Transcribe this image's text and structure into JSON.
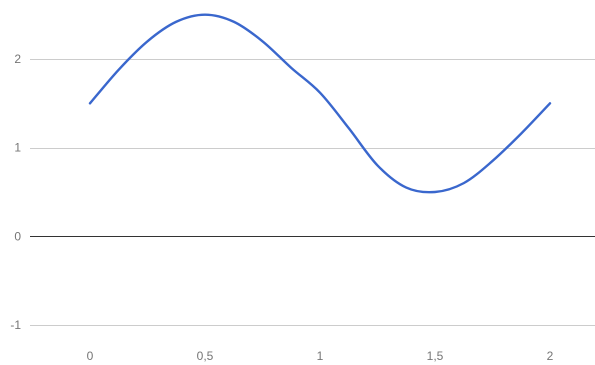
{
  "chart_data": {
    "type": "line",
    "title": "",
    "xlabel": "",
    "ylabel": "",
    "xlim": [
      0,
      2
    ],
    "ylim": [
      -1,
      2
    ],
    "x_ticks": [
      0,
      0.5,
      1,
      1.5,
      2
    ],
    "x_tick_labels": [
      "0",
      "0,5",
      "1",
      "1,5",
      "2"
    ],
    "y_ticks": [
      -1,
      0,
      1,
      2
    ],
    "y_tick_labels": [
      "-1",
      "0",
      "1",
      "2"
    ],
    "grid": true,
    "legend": "none",
    "series": [
      {
        "color": "#3a67cd",
        "x": [
          0,
          0.125,
          0.25,
          0.375,
          0.5,
          0.625,
          0.75,
          0.875,
          1,
          1.125,
          1.25,
          1.375,
          1.5,
          1.625,
          1.75,
          1.875,
          2
        ],
        "y": [
          1.5,
          1.88,
          2.2,
          2.42,
          2.5,
          2.42,
          2.2,
          1.9,
          1.62,
          1.22,
          0.8,
          0.55,
          0.5,
          0.6,
          0.85,
          1.16,
          1.5
        ]
      }
    ],
    "colors": {
      "gridline": "#cccccc",
      "baseline": "#333333",
      "tick_label": "#757575"
    }
  }
}
